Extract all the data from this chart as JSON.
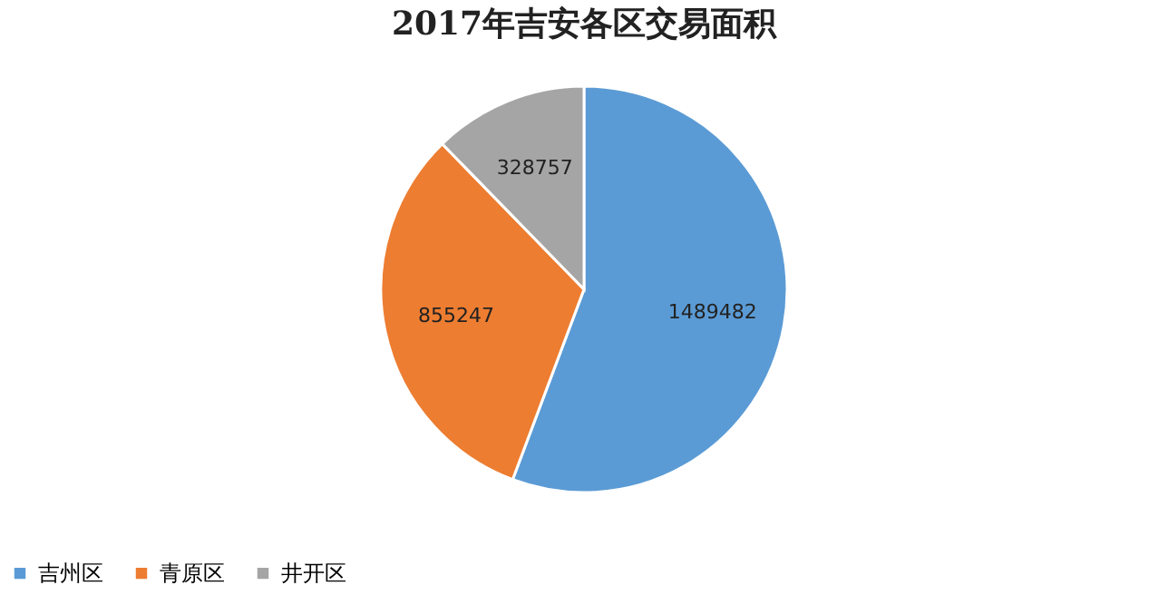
{
  "chart_data": {
    "type": "pie",
    "title": "2017年吉安各区交易面积",
    "categories": [
      "吉州区",
      "青原区",
      "井开区"
    ],
    "values": [
      1489482,
      855247,
      328757
    ],
    "colors": [
      "#5b9bd5",
      "#ed7d31",
      "#a5a5a5"
    ],
    "data_labels": true,
    "legend": "bottom"
  }
}
